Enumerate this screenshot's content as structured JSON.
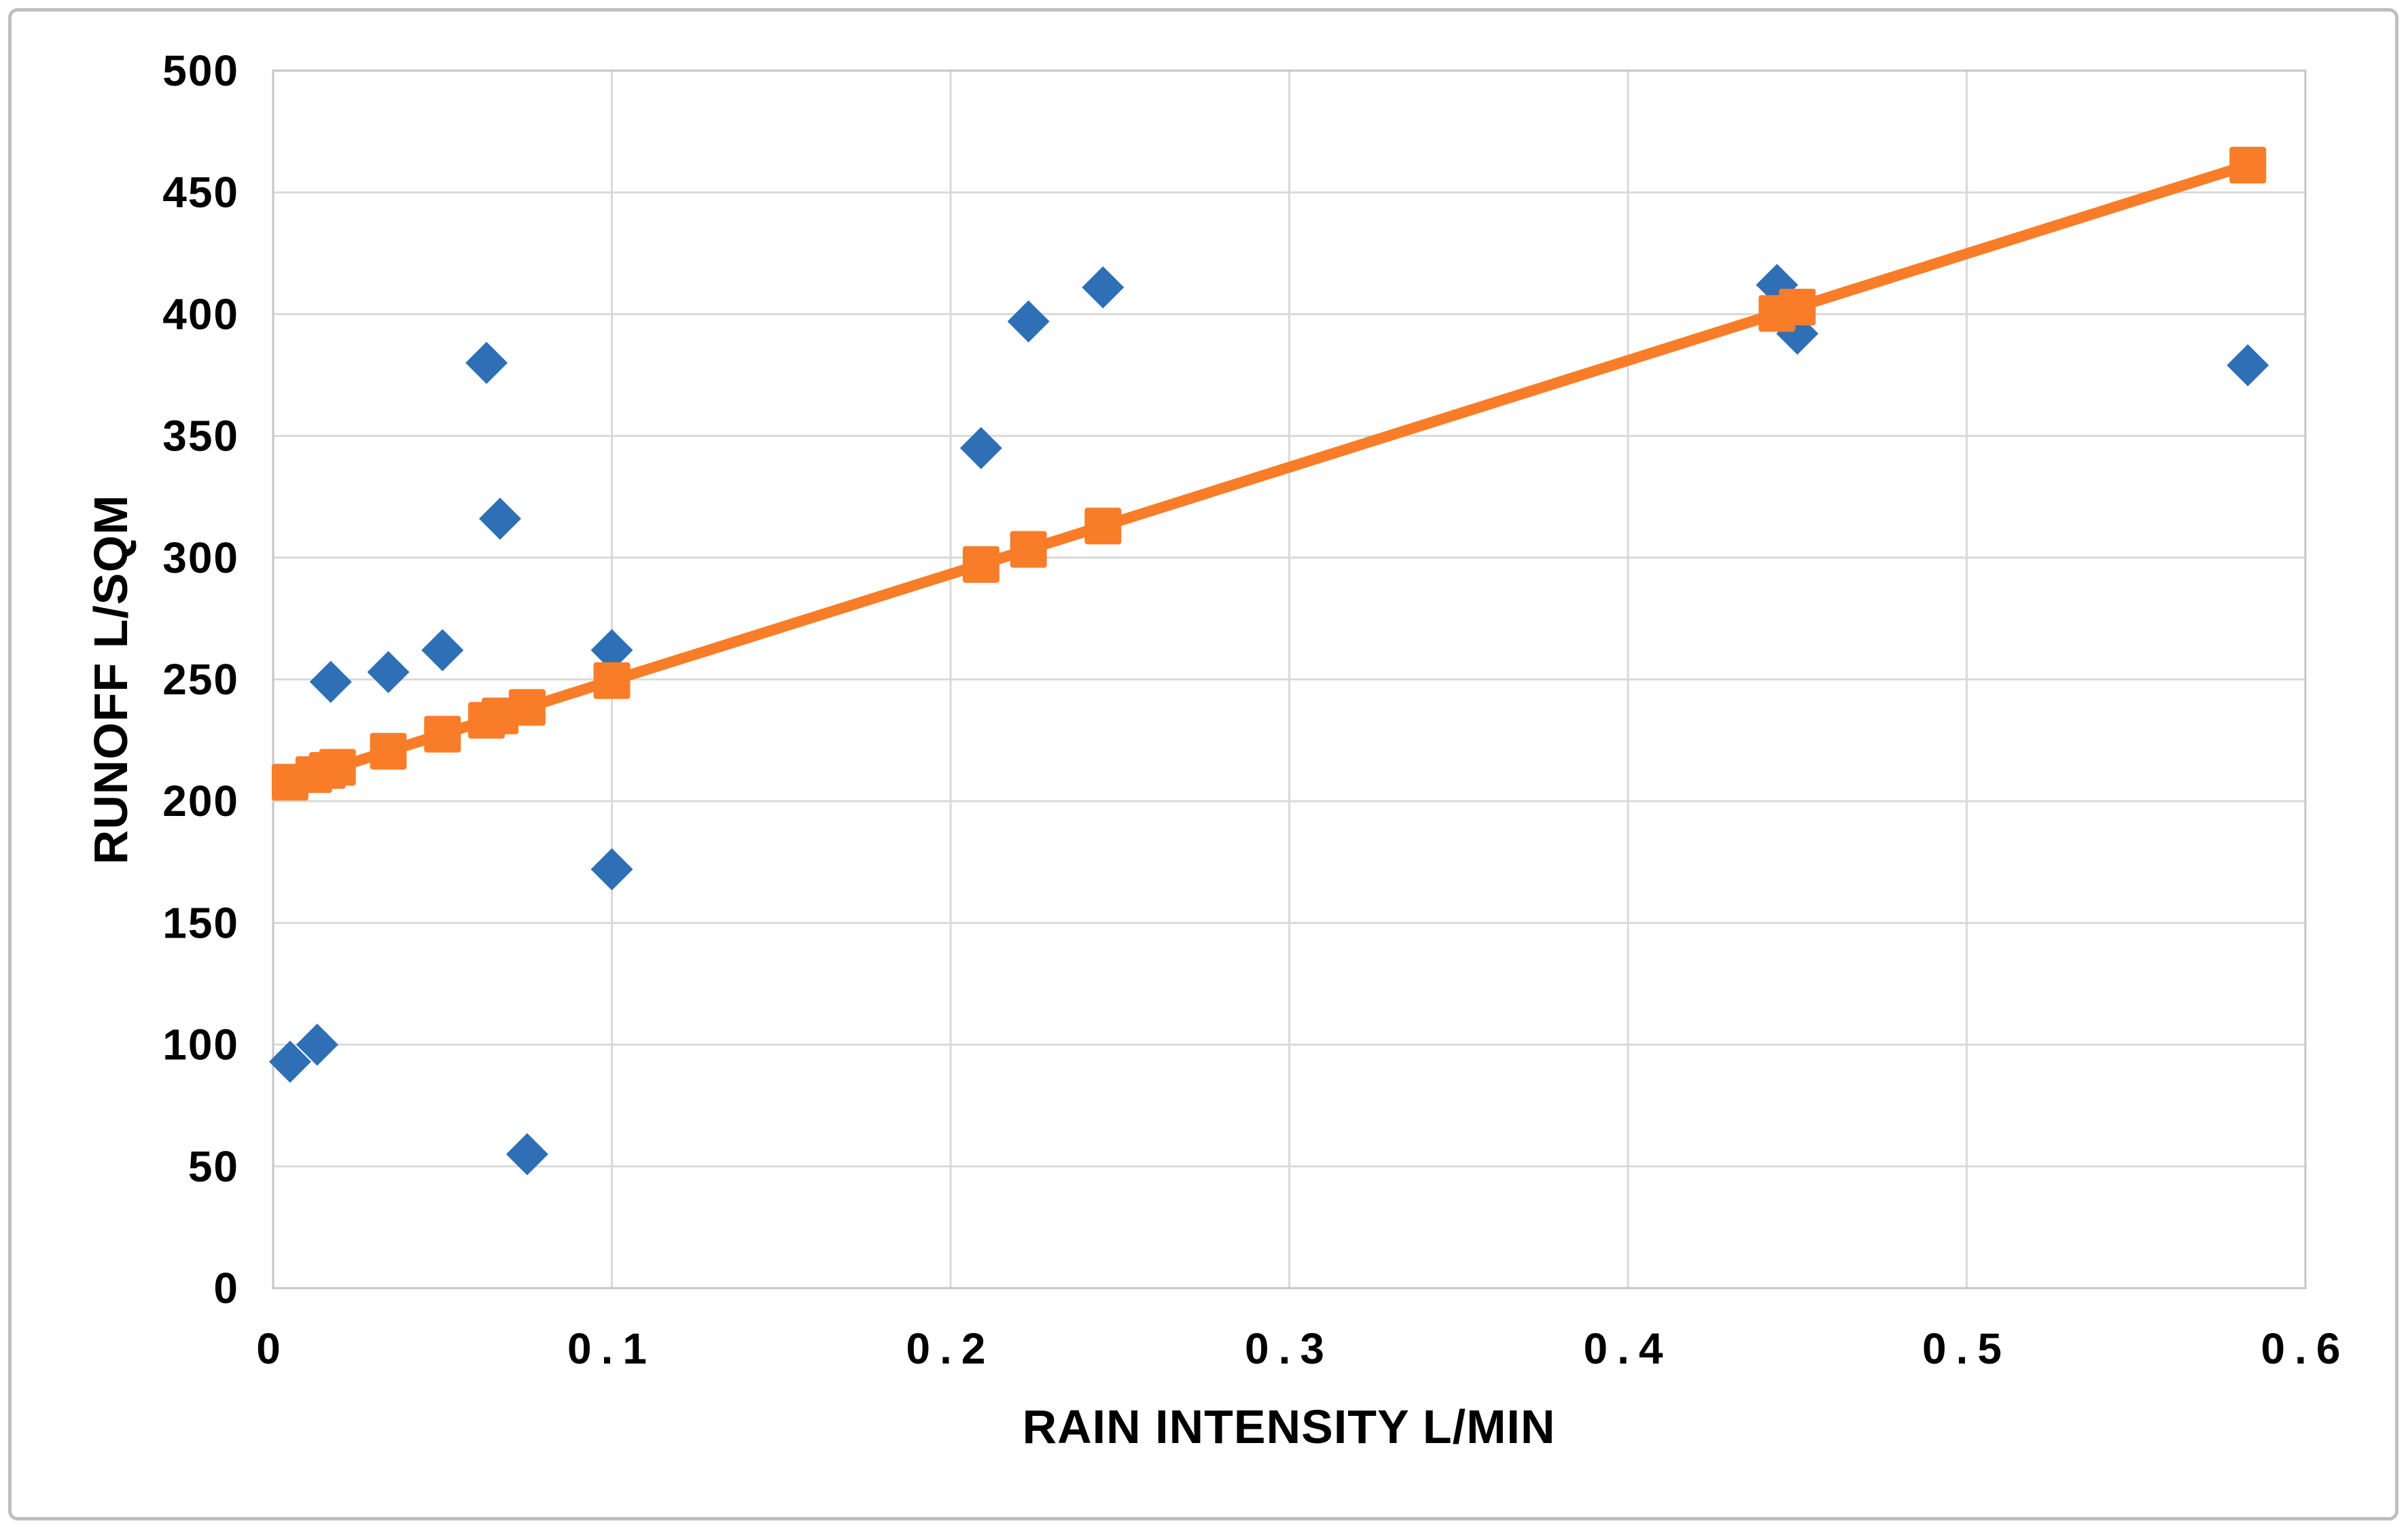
{
  "figure": {
    "background": "#FFFFFF",
    "frame_border_color": "#BFBFBF"
  },
  "chart_data": {
    "type": "scatter",
    "title": "",
    "xlabel": "RAIN INTENSITY L/MIN",
    "ylabel": "RUNOFF L/SQM",
    "xlim": [
      0,
      0.6
    ],
    "ylim": [
      0,
      500
    ],
    "grid": true,
    "legend_position": "none",
    "x_ticks": {
      "values": [
        0,
        0.1,
        0.2,
        0.3,
        0.4,
        0.5,
        0.6
      ],
      "labels": [
        "0",
        "0.1",
        "0.2",
        "0.3",
        "0.4",
        "0.5",
        "0.6"
      ]
    },
    "y_ticks": {
      "values": [
        0,
        50,
        100,
        150,
        200,
        250,
        300,
        350,
        400,
        450,
        500
      ],
      "labels": [
        "0",
        "50",
        "100",
        "150",
        "200",
        "250",
        "300",
        "350",
        "400",
        "450",
        "500"
      ]
    },
    "colors": {
      "gridline": "#D9D9D9",
      "plot_border": "#C6C6C6",
      "tick_text": "#000000",
      "diamond_series": "#2E6FB5",
      "square_series": "#F97D28"
    },
    "series": [
      {
        "id": "blue-diamonds",
        "marker": "diamond",
        "color": "#2E6FB5",
        "has_line": false,
        "points": [
          [
            0.005,
            93
          ],
          [
            0.013,
            100
          ],
          [
            0.017,
            249
          ],
          [
            0.034,
            253
          ],
          [
            0.05,
            262
          ],
          [
            0.063,
            380
          ],
          [
            0.067,
            316
          ],
          [
            0.075,
            55
          ],
          [
            0.1,
            262
          ],
          [
            0.1,
            172
          ],
          [
            0.209,
            345
          ],
          [
            0.223,
            397
          ],
          [
            0.245,
            411
          ],
          [
            0.444,
            412
          ],
          [
            0.45,
            392
          ],
          [
            0.583,
            379
          ]
        ]
      },
      {
        "id": "orange-squares-trendline",
        "marker": "square",
        "color": "#F97D28",
        "has_line": true,
        "points": [
          [
            0.005,
            207.8
          ],
          [
            0.012,
            210.9
          ],
          [
            0.016,
            212.6
          ],
          [
            0.019,
            213.9
          ],
          [
            0.034,
            220.5
          ],
          [
            0.05,
            227.5
          ],
          [
            0.063,
            233.2
          ],
          [
            0.067,
            235.0
          ],
          [
            0.075,
            238.5
          ],
          [
            0.1,
            249.5
          ],
          [
            0.209,
            297.2
          ],
          [
            0.223,
            303.4
          ],
          [
            0.245,
            313.0
          ],
          [
            0.444,
            400.3
          ],
          [
            0.45,
            402.9
          ],
          [
            0.583,
            461.2
          ]
        ]
      }
    ]
  }
}
